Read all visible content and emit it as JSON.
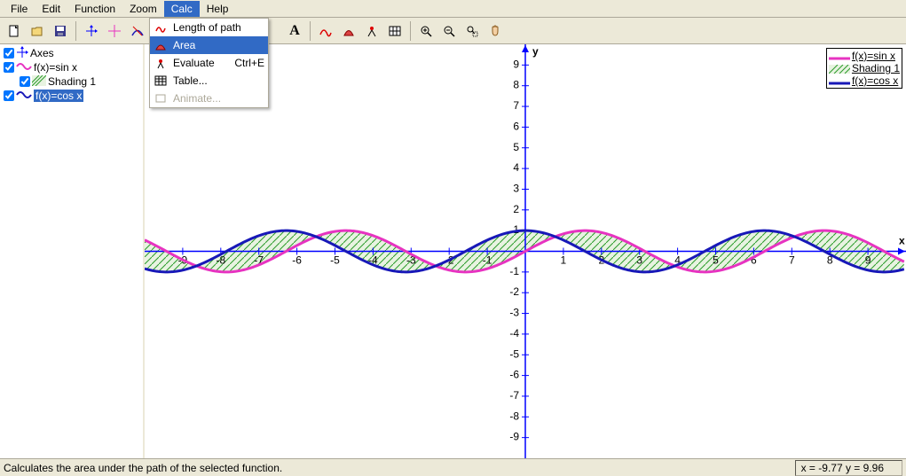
{
  "menubar": [
    "File",
    "Edit",
    "Function",
    "Zoom",
    "Calc",
    "Help"
  ],
  "open_menu_index": 4,
  "dropdown": {
    "items": [
      {
        "label": "Length of path",
        "icon": "path",
        "accel": ""
      },
      {
        "label": "Area",
        "icon": "area",
        "accel": "",
        "hover": true
      },
      {
        "label": "Evaluate",
        "icon": "eval",
        "accel": "Ctrl+E"
      },
      {
        "label": "Table...",
        "icon": "table",
        "accel": ""
      },
      {
        "label": "Animate...",
        "icon": "anim",
        "accel": "",
        "disabled": true
      }
    ]
  },
  "tree": [
    {
      "label": "Axes",
      "icon": "axes",
      "checked": true,
      "indent": false,
      "selected": false
    },
    {
      "label": "f(x)=sin x",
      "icon": "sin",
      "checked": true,
      "indent": false,
      "selected": false
    },
    {
      "label": "Shading 1",
      "icon": "hatch",
      "checked": true,
      "indent": true,
      "selected": false
    },
    {
      "label": "f(x)=cos x",
      "icon": "cos",
      "checked": true,
      "indent": false,
      "selected": true
    }
  ],
  "legend": [
    {
      "label": "f(x)=sin x",
      "style": "sin"
    },
    {
      "label": "Shading 1",
      "style": "hatch"
    },
    {
      "label": "f(x)=cos x",
      "style": "cos"
    }
  ],
  "status": {
    "text": "Calculates the area under the path of the selected function.",
    "coords": "x = -9.77   y = 9.96"
  },
  "chart": {
    "xmin": -10,
    "xmax": 10,
    "ymin": -10,
    "ymax": 10,
    "xticks": [
      -9,
      -8,
      -7,
      -6,
      -5,
      -4,
      -3,
      -2,
      -1,
      1,
      2,
      3,
      4,
      5,
      6,
      7,
      8,
      9
    ],
    "yticks": [
      -9,
      -8,
      -7,
      -6,
      -5,
      -4,
      -3,
      -2,
      -1,
      1,
      2,
      3,
      4,
      5,
      6,
      7,
      8,
      9
    ],
    "axis_color": "#0000ff",
    "tick_font": "10px",
    "series": [
      {
        "name": "sin",
        "color": "#e733c1",
        "width": 3,
        "fn": "sin"
      },
      {
        "name": "cos",
        "color": "#1818b8",
        "width": 3,
        "fn": "cos"
      }
    ],
    "shading": {
      "fill": "#e8f3e1",
      "stroke": "#2a9c2a",
      "between": [
        "sin",
        "cos"
      ]
    },
    "x_label": "x",
    "y_label": "y"
  }
}
